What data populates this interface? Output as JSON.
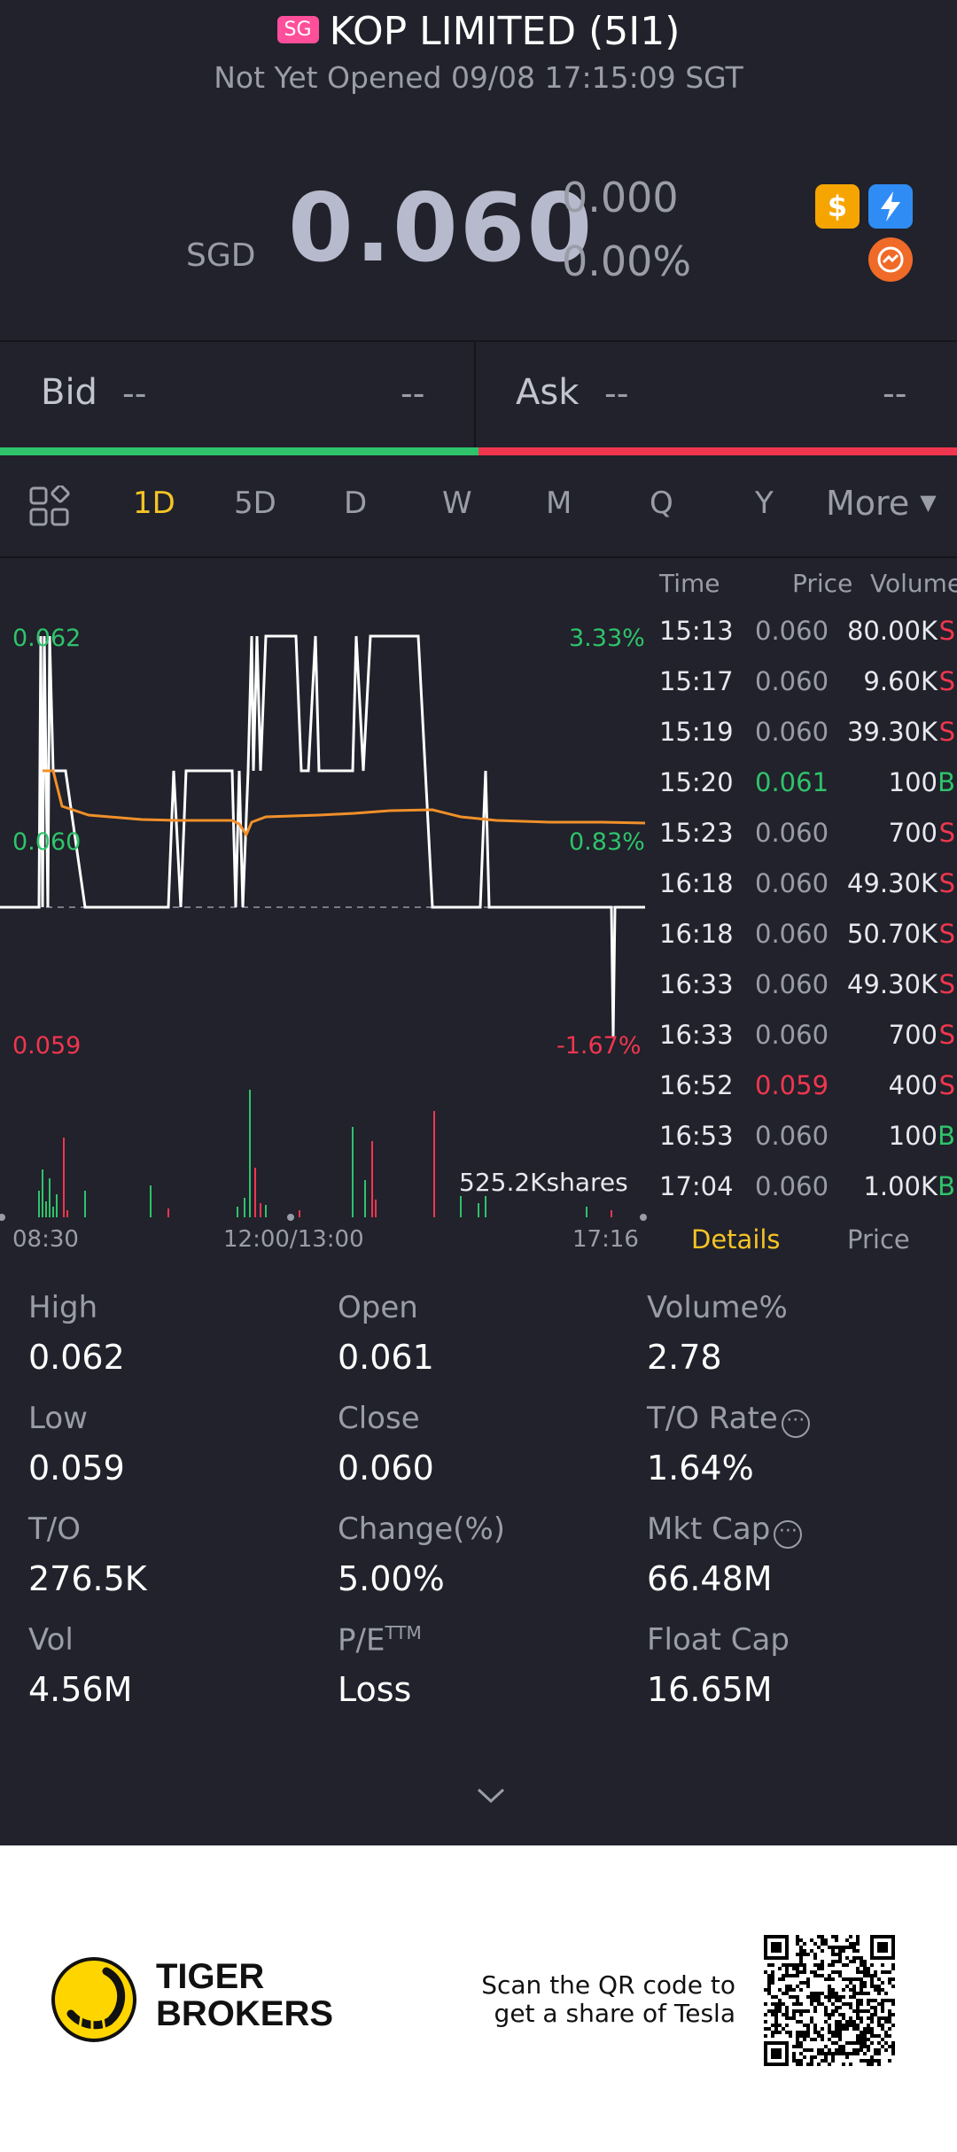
{
  "header": {
    "market_badge": "SG",
    "title": "KOP LIMITED (5I1)",
    "status": "Not Yet Opened 09/08 17:15:09 SGT"
  },
  "quote": {
    "currency": "SGD",
    "price": "0.060",
    "change": "0.000",
    "change_pct": "0.00%",
    "icons": [
      "dollar-icon",
      "lightning-icon",
      "exchange-icon"
    ]
  },
  "bid_ask": {
    "bid_label": "Bid",
    "bid_price": "--",
    "bid_size": "--",
    "ask_label": "Ask",
    "ask_price": "--",
    "ask_size": "--"
  },
  "periods": {
    "tabs": [
      "1D",
      "5D",
      "D",
      "W",
      "M",
      "Q",
      "Y"
    ],
    "active": "1D",
    "more": "More"
  },
  "chart": {
    "y_labels": {
      "top": "0.062",
      "mid": "0.060",
      "bottom": "0.059"
    },
    "pct_labels": {
      "top": "3.33%",
      "mid": "0.83%",
      "bottom": "-1.67%"
    },
    "volume_label": "525.2Kshares",
    "x_labels": [
      "08:30",
      "12:00/13:00",
      "17:16"
    ]
  },
  "chart_data": {
    "type": "line",
    "x": [
      "08:30",
      "12:00/13:00",
      "17:16"
    ],
    "series": [],
    "ylim": [
      0.059,
      0.062
    ]
  },
  "trades": {
    "headers": {
      "time": "Time",
      "price": "Price",
      "volume": "Volume"
    },
    "rows": [
      {
        "time": "15:13",
        "price": "0.060",
        "dir": "flat",
        "volume": "80.00K",
        "side": "S"
      },
      {
        "time": "15:17",
        "price": "0.060",
        "dir": "flat",
        "volume": "9.60K",
        "side": "S"
      },
      {
        "time": "15:19",
        "price": "0.060",
        "dir": "flat",
        "volume": "39.30K",
        "side": "S"
      },
      {
        "time": "15:20",
        "price": "0.061",
        "dir": "up",
        "volume": "100",
        "side": "B"
      },
      {
        "time": "15:23",
        "price": "0.060",
        "dir": "flat",
        "volume": "700",
        "side": "S"
      },
      {
        "time": "16:18",
        "price": "0.060",
        "dir": "flat",
        "volume": "49.30K",
        "side": "S"
      },
      {
        "time": "16:18",
        "price": "0.060",
        "dir": "flat",
        "volume": "50.70K",
        "side": "S"
      },
      {
        "time": "16:33",
        "price": "0.060",
        "dir": "flat",
        "volume": "49.30K",
        "side": "S"
      },
      {
        "time": "16:33",
        "price": "0.060",
        "dir": "flat",
        "volume": "700",
        "side": "S"
      },
      {
        "time": "16:52",
        "price": "0.059",
        "dir": "down",
        "volume": "400",
        "side": "S"
      },
      {
        "time": "16:53",
        "price": "0.060",
        "dir": "flat",
        "volume": "100",
        "side": "B"
      },
      {
        "time": "17:04",
        "price": "0.060",
        "dir": "flat",
        "volume": "1.00K",
        "side": "B"
      }
    ],
    "tab_details": "Details",
    "tab_price": "Price"
  },
  "stats": {
    "high_label": "High",
    "high": "0.062",
    "open_label": "Open",
    "open": "0.061",
    "volpct_label": "Volume%",
    "volpct": "2.78",
    "low_label": "Low",
    "low": "0.059",
    "close_label": "Close",
    "close": "0.060",
    "torate_label": "T/O Rate",
    "torate": "1.64%",
    "to_label": "T/O",
    "to": "276.5K",
    "change_label": "Change(%)",
    "change": "5.00%",
    "mktcap_label": "Mkt Cap",
    "mktcap": "66.48M",
    "vol_label": "Vol",
    "vol": "4.56M",
    "pe_label": "P/E",
    "pe_sup": "TTM",
    "pe": "Loss",
    "floatcap_label": "Float Cap",
    "floatcap": "16.65M"
  },
  "footer": {
    "brand_line1": "TIGER",
    "brand_line2": "BROKERS",
    "scan_line1": "Scan the QR code to",
    "scan_line2": "get a share of Tesla"
  },
  "colors": {
    "background": "#21222b",
    "green": "#2fc36b",
    "red": "#f0364f",
    "accent": "#f5c425",
    "avg_line": "#f0902a"
  }
}
